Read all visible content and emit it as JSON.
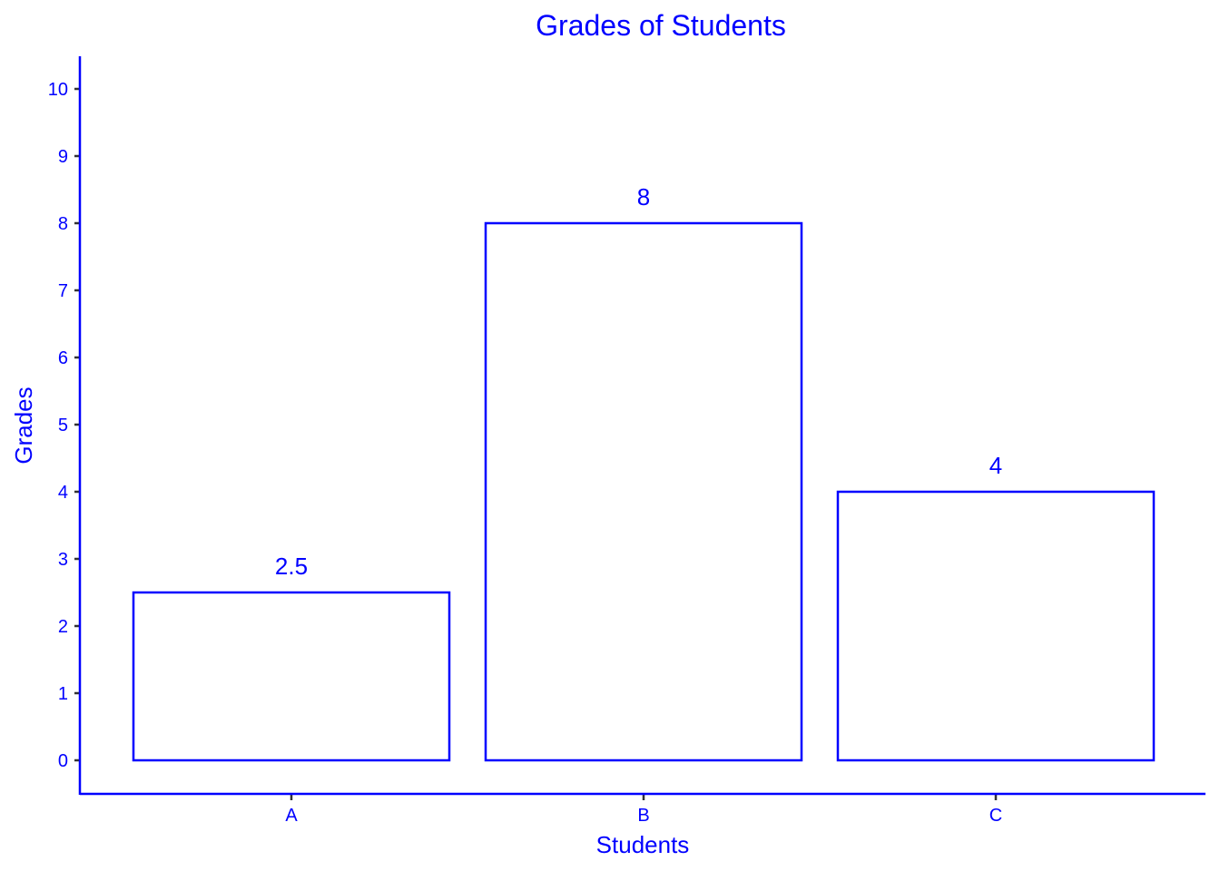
{
  "chart_data": {
    "type": "bar",
    "title": "Grades of Students",
    "xlabel": "Students",
    "ylabel": "Grades",
    "categories": [
      "A",
      "B",
      "C"
    ],
    "values": [
      2.5,
      8,
      4
    ],
    "data_labels": [
      "2.5",
      "8",
      "4"
    ],
    "yticks": [
      0,
      1,
      2,
      3,
      4,
      5,
      6,
      7,
      8,
      9,
      10
    ],
    "ylim": [
      -0.5,
      10.5
    ],
    "grid": false,
    "legend": "none",
    "colors": {
      "text": "#0000ff",
      "bar_outline": "#0000ff",
      "bar_fill": "#ffffff",
      "ticks": "#333333"
    }
  }
}
